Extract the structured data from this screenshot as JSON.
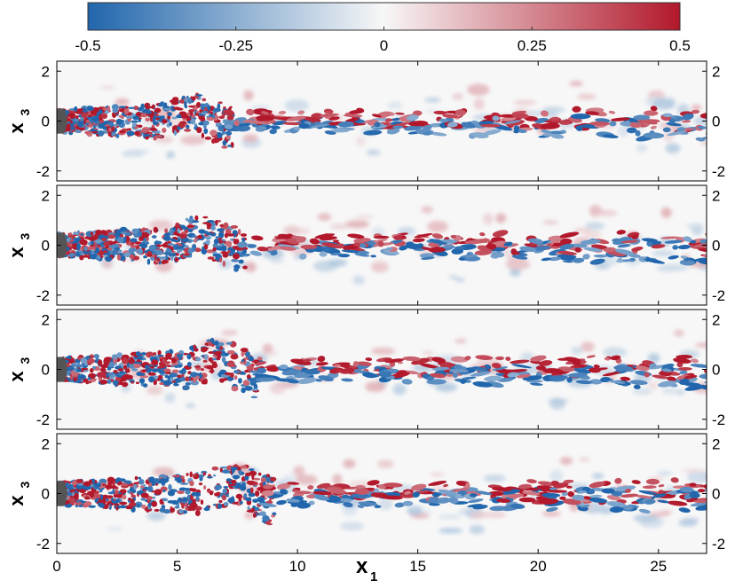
{
  "chart_data": {
    "type": "heatmap",
    "colorbar": {
      "min": -0.5,
      "max": 0.5,
      "ticks": [
        -0.5,
        -0.25,
        0,
        0.25,
        0.5
      ],
      "tick_labels": [
        "-0.5",
        "-0.25",
        "0",
        "0.25",
        "0.5"
      ],
      "colors": [
        "#2166ac",
        "#f7f7f7",
        "#b2182b"
      ]
    },
    "xlabel": "x",
    "xlabel_sub": "1",
    "ylabel": "x",
    "ylabel_sub": "3",
    "xlim": [
      0,
      27
    ],
    "ylim": [
      -2.4,
      2.4
    ],
    "x_ticks": [
      0,
      5,
      10,
      15,
      20,
      25
    ],
    "x_tick_labels": [
      "0",
      "5",
      "10",
      "15",
      "20",
      "25"
    ],
    "y_ticks": [
      2,
      0,
      -2
    ],
    "y_tick_labels": [
      "2",
      "0",
      "-2"
    ],
    "y_ticks_right": true,
    "panels": [
      {
        "body_color": "#555555",
        "wake_wave_center": 6.5
      },
      {
        "body_color": "#555555",
        "wake_wave_center": 7.0
      },
      {
        "body_color": "#555555",
        "wake_wave_center": 7.6
      },
      {
        "body_color": "#555555",
        "wake_wave_center": 8.2
      }
    ]
  }
}
